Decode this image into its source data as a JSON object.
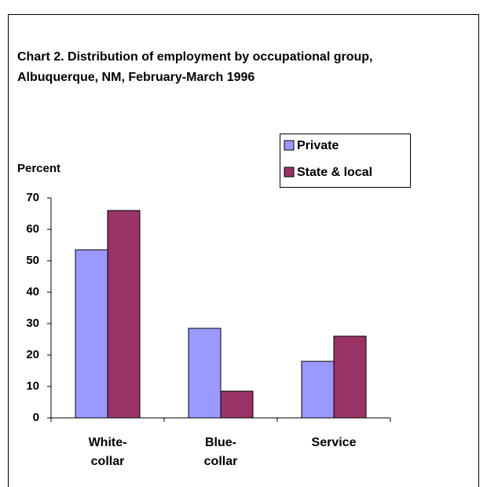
{
  "chart_data": {
    "type": "bar",
    "title": "Chart 2. Distribution of employment by occupational group, Albuquerque, NM, February-March 1996",
    "y_label": "Percent",
    "categories": [
      "White-collar",
      "Blue-collar",
      "Service"
    ],
    "series": [
      {
        "name": "Private",
        "color": "#9999ff",
        "values": [
          53.5,
          28.5,
          18
        ]
      },
      {
        "name": "State & local",
        "color": "#993366",
        "values": [
          66,
          8.5,
          26
        ]
      }
    ],
    "ylim": [
      0,
      70
    ],
    "yticks": [
      0,
      10,
      20,
      30,
      40,
      50,
      60,
      70
    ],
    "grid": false,
    "legend": "upper right"
  }
}
